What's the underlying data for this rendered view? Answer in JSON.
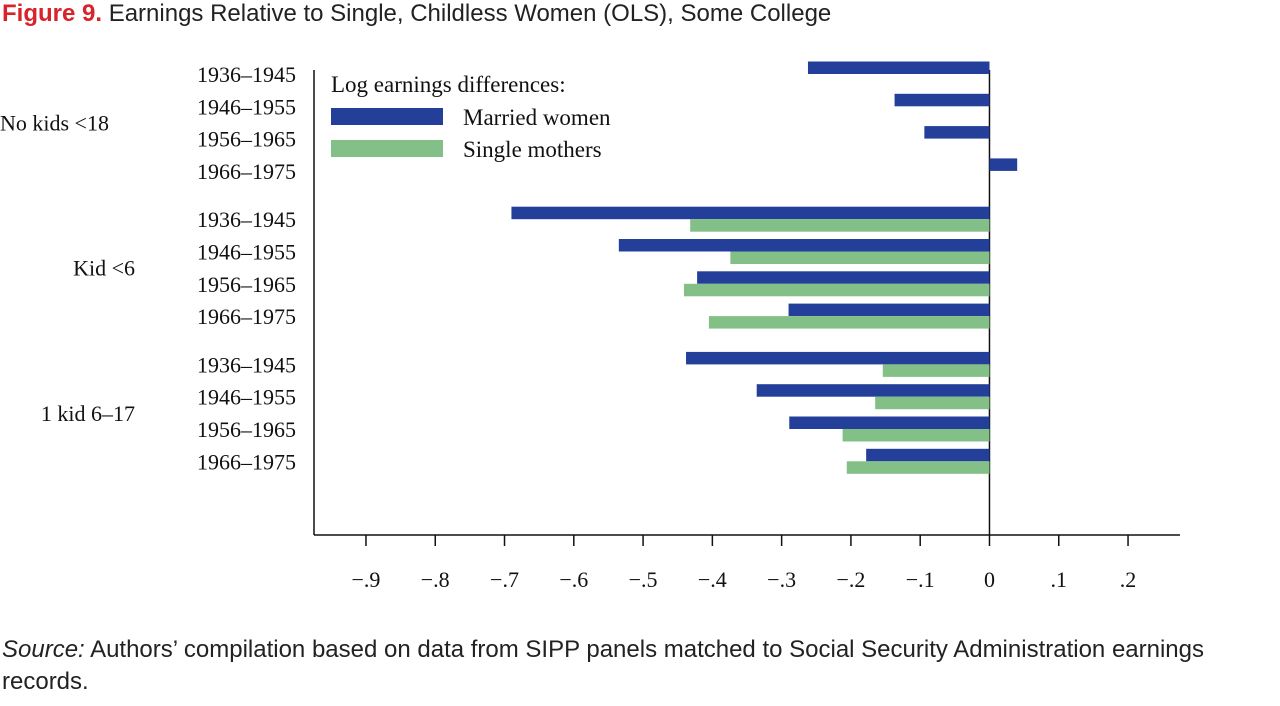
{
  "figure": {
    "label": "Figure 9.",
    "title": "Earnings Relative to Single, Childless Women (OLS), Some College"
  },
  "source": {
    "label": "Source:",
    "text": "Authors’ compilation based on data from SIPP panels matched to Social Security Administration earnings records."
  },
  "colors": {
    "married": "#233f99",
    "single": "#83c087",
    "axis": "#111111"
  },
  "chart_data": {
    "type": "bar",
    "orientation": "horizontal",
    "title": "",
    "xlabel": "",
    "ylabel": "",
    "xlim": [
      -0.975,
      0.275
    ],
    "xticks": [
      -0.9,
      -0.8,
      -0.7,
      -0.6,
      -0.5,
      -0.4,
      -0.3,
      -0.2,
      -0.1,
      0,
      0.1,
      0.2
    ],
    "xtick_labels": [
      "−.9",
      "−.8",
      "−.7",
      "−.6",
      "−.5",
      "−.4",
      "−.3",
      "−.2",
      "−.1",
      "0",
      ".1",
      ".2"
    ],
    "grid": false,
    "legend": {
      "title": "Log earnings differences:",
      "placement": "top-left",
      "entries": [
        "Married women",
        "Single mothers"
      ]
    },
    "groups": [
      {
        "name": "No kids <18",
        "rows": [
          {
            "cohort": "1936–1945",
            "married": -0.262,
            "single": null
          },
          {
            "cohort": "1946–1955",
            "married": -0.137,
            "single": null
          },
          {
            "cohort": "1956–1965",
            "married": -0.094,
            "single": null
          },
          {
            "cohort": "1966–1975",
            "married": 0.04,
            "single": null
          }
        ]
      },
      {
        "name": "Kid <6",
        "rows": [
          {
            "cohort": "1936–1945",
            "married": -0.69,
            "single": -0.432
          },
          {
            "cohort": "1946–1955",
            "married": -0.535,
            "single": -0.374
          },
          {
            "cohort": "1956–1965",
            "married": -0.422,
            "single": -0.441
          },
          {
            "cohort": "1966–1975",
            "married": -0.29,
            "single": -0.405
          }
        ]
      },
      {
        "name": "1 kid 6–17",
        "rows": [
          {
            "cohort": "1936–1945",
            "married": -0.438,
            "single": -0.154
          },
          {
            "cohort": "1946–1955",
            "married": -0.336,
            "single": -0.165
          },
          {
            "cohort": "1956–1965",
            "married": -0.289,
            "single": -0.212
          },
          {
            "cohort": "1966–1975",
            "married": -0.178,
            "single": -0.206
          }
        ]
      }
    ]
  }
}
